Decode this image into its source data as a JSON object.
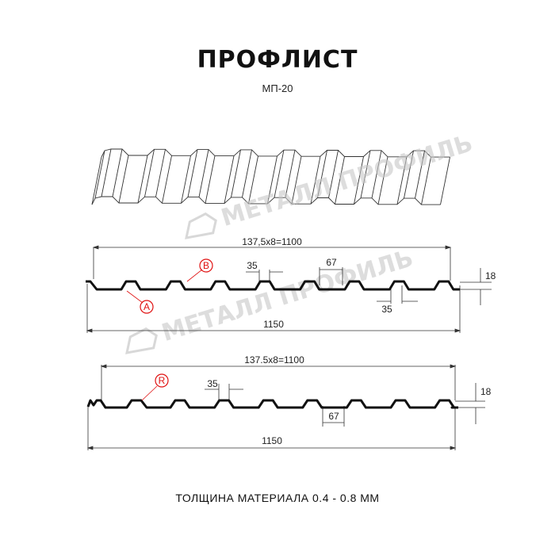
{
  "header": {
    "title": "ПРОФЛИСТ",
    "subtitle": "МП-20"
  },
  "watermark": "МЕТАЛЛ ПРОФИЛЬ",
  "profile_a": {
    "pitch_dim": "137,5x8=1100",
    "width_dim": "1150",
    "top_width": "35",
    "bottom_width": "35",
    "valley_width": "67",
    "height": "18",
    "callout_a": "A",
    "callout_b": "B"
  },
  "profile_r": {
    "pitch_dim": "137.5x8=1100",
    "width_dim": "1150",
    "top_width": "35",
    "valley_width": "67",
    "height": "18",
    "callout_r": "R"
  },
  "footer": {
    "thickness": "ТОЛЩИНА МАТЕРИАЛА 0.4 - 0.8 ММ"
  },
  "colors": {
    "callout": "#e01010",
    "profile": "#111111",
    "watermark": "#c8c8c8"
  }
}
